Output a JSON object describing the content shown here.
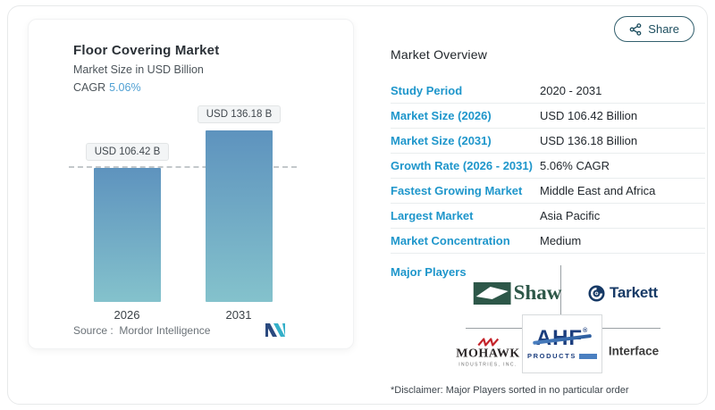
{
  "header": {
    "share_label": "Share"
  },
  "chart_card": {
    "title": "Floor Covering Market",
    "subtitle": "Market Size in USD Billion",
    "cagr_label": "CAGR",
    "cagr_value": "5.06%",
    "source_label": "Source :",
    "source_value": "Mordor Intelligence"
  },
  "chart_data": {
    "type": "bar",
    "title": "Floor Covering Market",
    "ylabel": "Market Size in USD Billion",
    "xlabel": "",
    "categories": [
      "2026",
      "2031"
    ],
    "values": [
      106.42,
      136.18
    ],
    "bar_labels": [
      "USD 106.42 B",
      "USD 136.18 B"
    ],
    "ylim": [
      0,
      150
    ],
    "grid": false,
    "legend": false,
    "reference_line_value": 106.42,
    "bar_gradient_top": "#5e93be",
    "bar_gradient_bottom": "#84c2cc"
  },
  "overview": {
    "title": "Market Overview",
    "rows": [
      {
        "label": "Study Period",
        "value": "2020 - 2031"
      },
      {
        "label": "Market Size (2026)",
        "value": "USD 106.42 Billion"
      },
      {
        "label": "Market Size (2031)",
        "value": "USD 136.18 Billion"
      },
      {
        "label": "Growth Rate (2026 - 2031)",
        "value": "5.06% CAGR"
      },
      {
        "label": "Fastest Growing Market",
        "value": "Middle East and Africa"
      },
      {
        "label": "Largest Market",
        "value": "Asia Pacific"
      },
      {
        "label": "Market Concentration",
        "value": "Medium"
      }
    ],
    "major_players_label": "Major Players",
    "disclaimer": "*Disclaimer: Major Players sorted in no particular order"
  },
  "logos": {
    "shaw": {
      "text": "Shaw"
    },
    "tarkett": {
      "text": "Tarkett"
    },
    "mohawk": {
      "text": "MOHAWK",
      "sub": "INDUSTRIES, INC."
    },
    "ahf": {
      "text": "AHF",
      "reg": "®",
      "sub": "PRODUCTS"
    },
    "interface": {
      "text": "Interface"
    }
  },
  "colors": {
    "accent_blue": "#1e96cb",
    "cagr_blue": "#4fa0d3",
    "share_teal": "#1d4e5f"
  }
}
